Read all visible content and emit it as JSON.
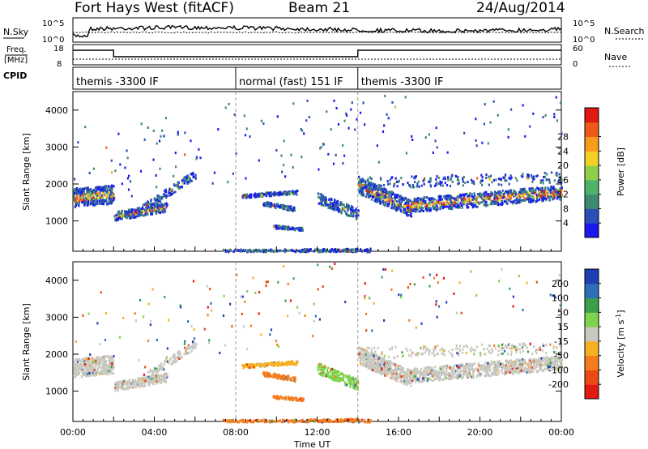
{
  "header": {
    "radar": "Fort Hays West (fitACF)",
    "beam": "Beam 21",
    "date": "24/Aug/2014"
  },
  "noise_panel": {
    "left_label": "N.Sky",
    "right_label": "N.Search",
    "left_ticks": [
      "10^5",
      "10^0"
    ],
    "right_ticks": [
      "10^5",
      "10^0"
    ]
  },
  "freq_panel": {
    "left_label_1": "Freq.",
    "left_label_2": "[MHz]",
    "left_ticks": [
      "18",
      "8"
    ],
    "right_label": "Nave",
    "right_ticks": [
      "60",
      "0"
    ]
  },
  "cpid": {
    "label": "CPID",
    "segments": [
      {
        "start_hour": 0,
        "text": "themis -3300 IF"
      },
      {
        "start_hour": 8,
        "text": "normal (fast) 151 IF"
      },
      {
        "start_hour": 14,
        "text": "themis -3300 IF"
      }
    ]
  },
  "chart_data": [
    {
      "type": "heatmap",
      "parameter": "power",
      "ylabel": "Slant Range [km]",
      "ylim": [
        180,
        4500
      ],
      "yticks": [
        1000,
        2000,
        3000,
        4000
      ],
      "xlim": [
        0,
        24
      ],
      "colorbar": {
        "label": "Power [dB]",
        "ticks": [
          4,
          8,
          12,
          16,
          20,
          24,
          28
        ],
        "colors": [
          "#1a1aee",
          "#2a4fb8",
          "#3d8a6e",
          "#4fb26a",
          "#8fd04a",
          "#f3d023",
          "#f89a1c",
          "#ee5a18",
          "#e01a12"
        ]
      }
    },
    {
      "type": "heatmap",
      "parameter": "velocity",
      "ylabel": "Slant Range [km]",
      "xlabel": "Time UT",
      "ylim": [
        180,
        4500
      ],
      "yticks": [
        1000,
        2000,
        3000,
        4000
      ],
      "xlim": [
        0,
        24
      ],
      "xticks": [
        "00:00",
        "04:00",
        "08:00",
        "12:00",
        "16:00",
        "20:00",
        "00:00"
      ],
      "colorbar": {
        "label": "Velocity [m s",
        "label_sup": "-1",
        "label_end": "]",
        "ticks": [
          200,
          100,
          50,
          15,
          -15,
          -50,
          -100,
          -200
        ],
        "colors": [
          "#1f3fb3",
          "#2f6fb8",
          "#3aa14a",
          "#7ed34f",
          "#c8c8c0",
          "#f6b122",
          "#f47c1e",
          "#ea4a14",
          "#e01a12"
        ]
      }
    }
  ]
}
